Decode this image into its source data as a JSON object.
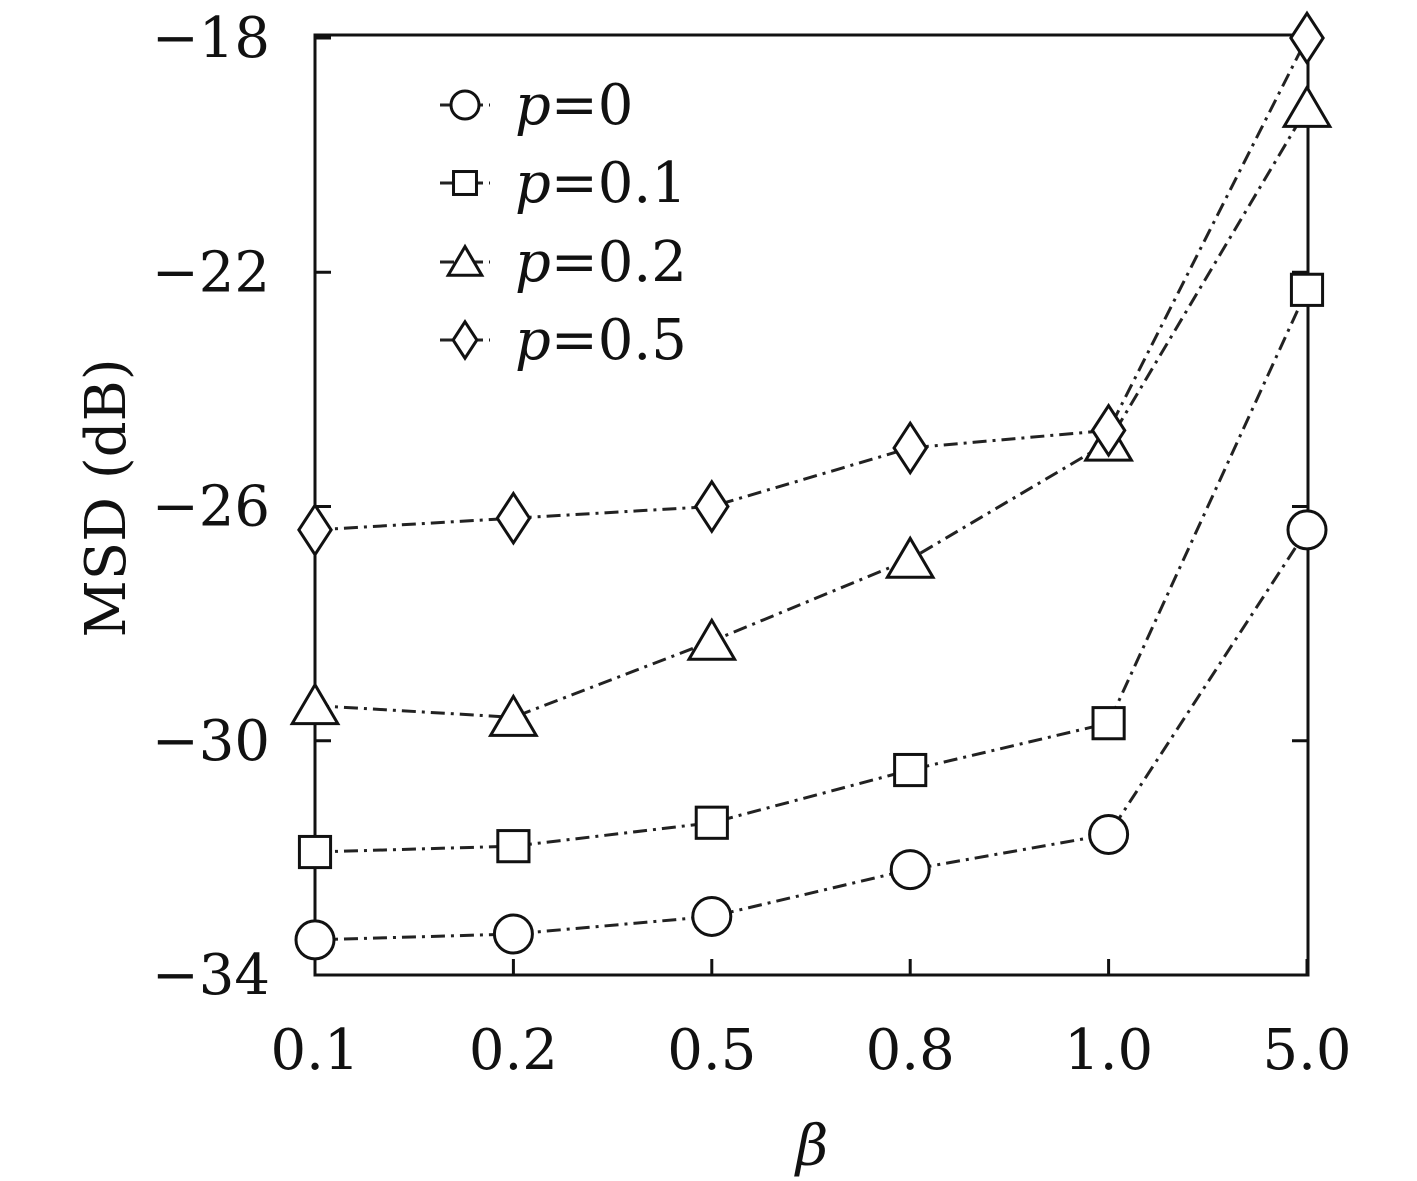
{
  "chart_data": {
    "type": "line",
    "categories": [
      "0.1",
      "0.2",
      "0.5",
      "0.8",
      "1.0",
      "5.0"
    ],
    "xlabel": "β",
    "ylabel": "MSD (dB)",
    "ylim": [
      -34,
      -18
    ],
    "y_ticks": [
      "-18",
      "-22",
      "-26",
      "-30",
      "-34"
    ],
    "y_tick_values": [
      -18,
      -22,
      -26,
      -30,
      -34
    ],
    "legend_position": "top-left",
    "grid": false,
    "series": [
      {
        "name": "p=0",
        "name_var": "p",
        "name_val": "=0",
        "marker": "circle",
        "values": [
          -33.4,
          -33.3,
          -33.0,
          -32.2,
          -31.6,
          -26.4
        ]
      },
      {
        "name": "p=0.1",
        "name_var": "p",
        "name_val": "=0.1",
        "marker": "square",
        "values": [
          -31.9,
          -31.8,
          -31.4,
          -30.5,
          -29.7,
          -22.3
        ]
      },
      {
        "name": "p=0.2",
        "name_var": "p",
        "name_val": "=0.2",
        "marker": "triangle",
        "values": [
          -29.4,
          -29.6,
          -28.3,
          -26.9,
          -24.9,
          -19.2
        ]
      },
      {
        "name": "p=0.5",
        "name_var": "p",
        "name_val": "=0.5",
        "marker": "diamond",
        "values": [
          -26.4,
          -26.2,
          -26.0,
          -25.0,
          -24.7,
          -18.0
        ]
      }
    ]
  }
}
